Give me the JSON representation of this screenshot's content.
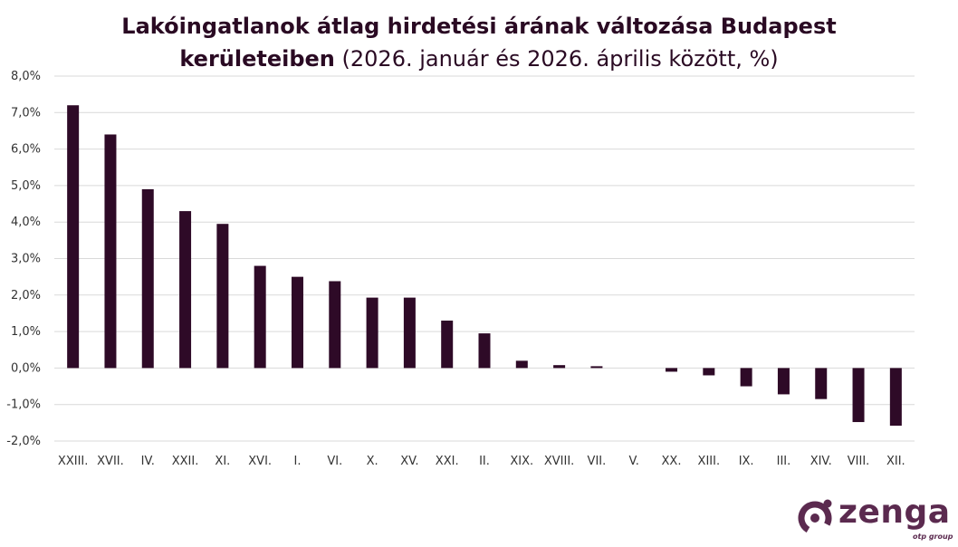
{
  "title": {
    "line1": "Lakóingatlanok átlag hirdetési árának változása Budapest",
    "line2_bold": "kerületeiben",
    "line2_rest": " (2026. január és 2026. április között, %)"
  },
  "chart_data": {
    "type": "bar",
    "categories": [
      "XXIII.",
      "XVII.",
      "IV.",
      "XXII.",
      "XI.",
      "XVI.",
      "I.",
      "VI.",
      "X.",
      "XV.",
      "XXI.",
      "II.",
      "XIX.",
      "XVIII.",
      "VII.",
      "V.",
      "XX.",
      "XIII.",
      "IX.",
      "III.",
      "XIV.",
      "VIII.",
      "XII."
    ],
    "values": [
      7.2,
      6.4,
      4.9,
      4.3,
      3.95,
      2.8,
      2.5,
      2.38,
      1.93,
      1.93,
      1.3,
      0.95,
      0.2,
      0.08,
      0.05,
      0.0,
      -0.1,
      -0.2,
      -0.5,
      -0.72,
      -0.85,
      -1.48,
      -1.58
    ],
    "ylim": [
      -2.0,
      8.0
    ],
    "yticks": [
      "-2,0%",
      "-1,0%",
      "0,0%",
      "1,0%",
      "2,0%",
      "3,0%",
      "4,0%",
      "5,0%",
      "6,0%",
      "7,0%",
      "8,0%"
    ],
    "bar_color": "#2e0a27",
    "grid": true
  },
  "logo": {
    "word": "zenga",
    "sub": "otp group",
    "color": "#5b2a4f"
  }
}
